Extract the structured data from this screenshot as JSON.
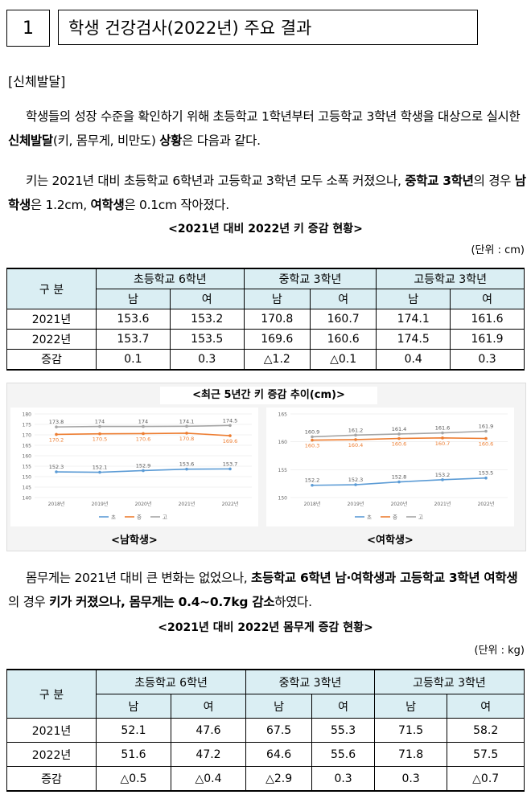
{
  "header": {
    "number": "1",
    "title": "학생 건강검사(2022년) 주요 결과"
  },
  "section": "[신체발달]",
  "paragraphs": [
    {
      "runs": [
        {
          "text": "학생들의 성장 수준을 확인하기 위해 초등학교 1학년부터 고등학교 3학년 학생을 대상으로 실시한 "
        },
        {
          "text": "신체발달",
          "bold": true
        },
        {
          "text": "(키, 몸무게, 비만도) "
        },
        {
          "text": "상황",
          "bold": true
        },
        {
          "text": "은 다음과 같다."
        }
      ]
    },
    {
      "runs": [
        {
          "text": "키는 2021년 대비 초등학교 6학년과 고등학교 3학년 모두 소폭 커졌으나, "
        },
        {
          "text": "중학교 3학년",
          "bold": true
        },
        {
          "text": "의 경우 "
        },
        {
          "text": "남학생",
          "bold": true
        },
        {
          "text": "은 1.2cm, "
        },
        {
          "text": "여학생",
          "bold": true
        },
        {
          "text": "은 0.1cm 작아졌다."
        }
      ]
    },
    {
      "runs": [
        {
          "text": "몸무게는 2021년 대비 큰 변화는 없었으나, "
        },
        {
          "text": "초등학교 6학년 남·여학생과 고등학교 3학년 여학생",
          "bold": true
        },
        {
          "text": "의 경우 "
        },
        {
          "text": "키가 커졌으나, 몸무게는 0.4~0.7kg 감소",
          "bold": true
        },
        {
          "text": "하였다."
        }
      ]
    }
  ],
  "tables": [
    {
      "caption": "<2021년 대비 2022년 키 증감 현황>",
      "unit": "(단위 : cm)",
      "corner": "구  분",
      "groups": [
        "초등학교 6학년",
        "중학교 3학년",
        "고등학교 3학년"
      ],
      "subheads": [
        "남",
        "여",
        "남",
        "여",
        "남",
        "여"
      ],
      "rows": [
        [
          "2021년",
          "153.6",
          "153.2",
          "170.8",
          "160.7",
          "174.1",
          "161.6"
        ],
        [
          "2022년",
          "153.7",
          "153.5",
          "169.6",
          "160.6",
          "174.5",
          "161.9"
        ],
        [
          "증감",
          "0.1",
          "0.3",
          "△1.2",
          "△0.1",
          "0.4",
          "0.3"
        ]
      ]
    },
    {
      "caption": "<2021년 대비 2022년 몸무게 증감 현황>",
      "unit": "(단위 : kg)",
      "corner": "구  분",
      "groups": [
        "초등학교 6학년",
        "중학교 3학년",
        "고등학교 3학년"
      ],
      "subheads": [
        "남",
        "여",
        "남",
        "여",
        "남",
        "여"
      ],
      "rows": [
        [
          "2021년",
          "52.1",
          "47.6",
          "67.5",
          "55.3",
          "71.5",
          "58.2"
        ],
        [
          "2022년",
          "51.6",
          "47.2",
          "64.6",
          "55.6",
          "71.8",
          "57.5"
        ],
        [
          "증감",
          "△0.5",
          "△0.4",
          "△2.9",
          "0.3",
          "0.3",
          "△0.7"
        ]
      ]
    }
  ],
  "figure": {
    "title": "<최근 5년간 키 증감 추이(cm)>"
  },
  "chart_data": [
    {
      "type": "line",
      "caption": "<남학생>",
      "categories": [
        "2018년",
        "2019년",
        "2020년",
        "2021년",
        "2022년"
      ],
      "ylim": [
        140,
        180
      ],
      "yticks": [
        140,
        145,
        150,
        155,
        160,
        165,
        170,
        175,
        180
      ],
      "grid": true,
      "series": [
        {
          "name": "초",
          "color": "#5b9bd5",
          "values": [
            152.3,
            152.1,
            152.9,
            153.6,
            153.7
          ]
        },
        {
          "name": "중",
          "color": "#ed7d31",
          "values": [
            170.2,
            170.5,
            170.6,
            170.8,
            169.6
          ]
        },
        {
          "name": "고",
          "color": "#a5a5a5",
          "values": [
            173.8,
            174.0,
            174.0,
            174.1,
            174.5
          ]
        }
      ]
    },
    {
      "type": "line",
      "caption": "<여학생>",
      "categories": [
        "2018년",
        "2019년",
        "2020년",
        "2021년",
        "2022년"
      ],
      "ylim": [
        150,
        165
      ],
      "yticks": [
        150,
        155,
        160,
        165
      ],
      "grid": true,
      "series": [
        {
          "name": "초",
          "color": "#5b9bd5",
          "values": [
            152.2,
            152.3,
            152.8,
            153.2,
            153.5
          ]
        },
        {
          "name": "중",
          "color": "#ed7d31",
          "values": [
            160.3,
            160.4,
            160.6,
            160.7,
            160.6
          ]
        },
        {
          "name": "고",
          "color": "#a5a5a5",
          "values": [
            160.9,
            161.2,
            161.4,
            161.6,
            161.9
          ]
        }
      ]
    }
  ]
}
